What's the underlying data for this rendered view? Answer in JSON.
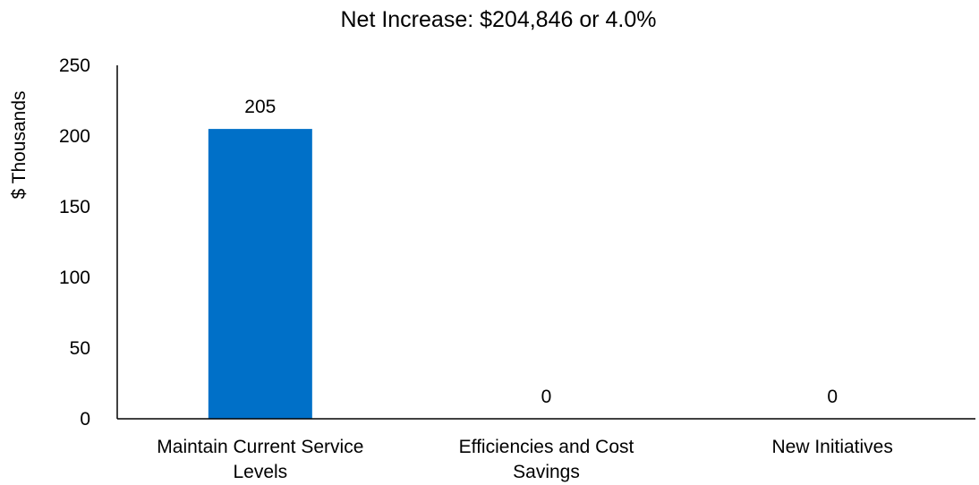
{
  "chart_data": {
    "type": "bar",
    "title": "Net Increase: $204,846 or 4.0%",
    "xlabel": "",
    "ylabel": "$ Thousands",
    "categories": [
      [
        "Maintain Current Service",
        "Levels"
      ],
      [
        "Efficiencies and Cost",
        "Savings"
      ],
      [
        "New Initiatives"
      ]
    ],
    "values": [
      205,
      0,
      0
    ],
    "data_labels": [
      "205",
      "0",
      "0"
    ],
    "ylim": [
      0,
      250
    ],
    "yticks": [
      0,
      50,
      100,
      150,
      200,
      250
    ],
    "ytick_labels": [
      "0",
      "50",
      "100",
      "150",
      "200",
      "250"
    ],
    "grid": false,
    "legend": "none",
    "colors": {
      "bar": "#0070C8",
      "axis": "#000000",
      "text": "#000000"
    }
  }
}
